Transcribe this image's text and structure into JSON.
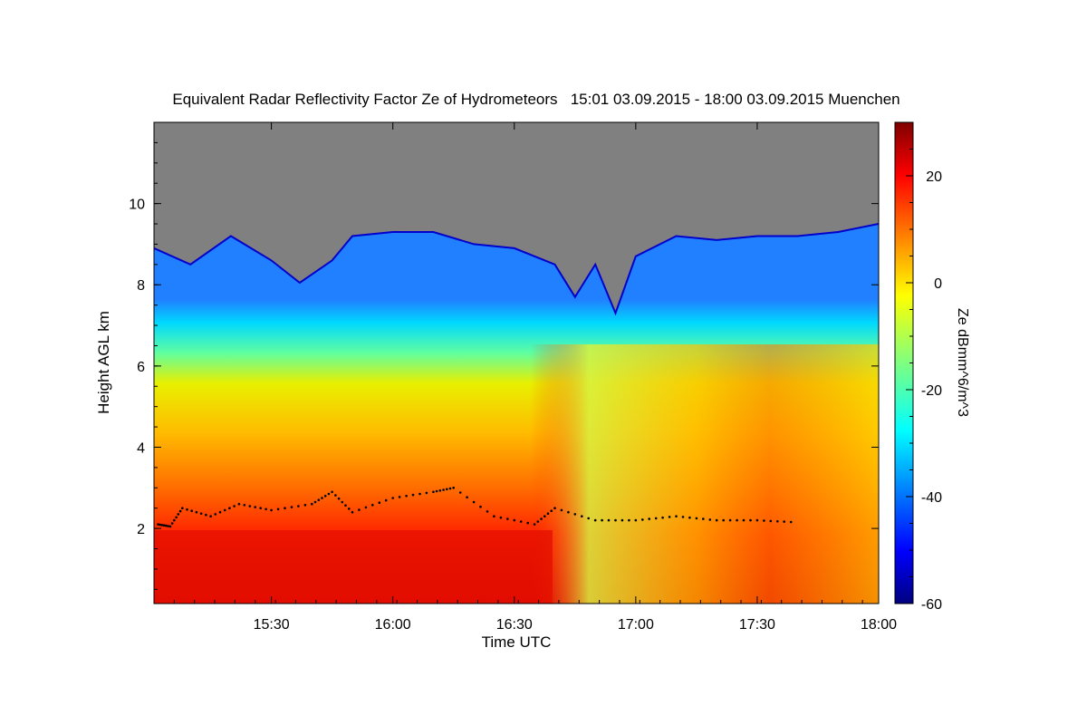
{
  "chart_data": {
    "type": "heatmap",
    "title": "Equivalent Radar Reflectivity Factor Ze of Hydrometeors   15:01 03.09.2015 - 18:00 03.09.2015 Muenchen",
    "xlabel": "Time UTC",
    "ylabel": "Height AGL km",
    "colorbar_label": "Ze dBmm^6/m^3",
    "x_start": "15:01",
    "x_end": "18:00",
    "x_ticks": [
      "15:30",
      "16:00",
      "16:30",
      "17:00",
      "17:30",
      "18:00"
    ],
    "ylim": [
      0.15,
      12
    ],
    "y_ticks": [
      "2",
      "4",
      "6",
      "8",
      "10"
    ],
    "clim": [
      -60,
      30
    ],
    "colorbar_ticks": [
      "20",
      "0",
      "-20",
      "-40",
      "-60"
    ],
    "colormap": "jet",
    "no_data_color": "#808080",
    "echo_top_km": [
      {
        "t": "15:01",
        "h": 8.9
      },
      {
        "t": "15:10",
        "h": 8.5
      },
      {
        "t": "15:20",
        "h": 9.2
      },
      {
        "t": "15:30",
        "h": 8.6
      },
      {
        "t": "15:37",
        "h": 8.05
      },
      {
        "t": "15:45",
        "h": 8.6
      },
      {
        "t": "15:50",
        "h": 9.2
      },
      {
        "t": "16:00",
        "h": 9.3
      },
      {
        "t": "16:10",
        "h": 9.3
      },
      {
        "t": "16:20",
        "h": 9.0
      },
      {
        "t": "16:30",
        "h": 8.9
      },
      {
        "t": "16:40",
        "h": 8.5
      },
      {
        "t": "16:45",
        "h": 7.7
      },
      {
        "t": "16:50",
        "h": 8.5
      },
      {
        "t": "16:55",
        "h": 7.3
      },
      {
        "t": "17:00",
        "h": 8.7
      },
      {
        "t": "17:10",
        "h": 9.2
      },
      {
        "t": "17:20",
        "h": 9.1
      },
      {
        "t": "17:30",
        "h": 9.2
      },
      {
        "t": "17:40",
        "h": 9.2
      },
      {
        "t": "17:50",
        "h": 9.3
      },
      {
        "t": "18:00",
        "h": 9.5
      }
    ],
    "melting_layer_km": [
      {
        "t": "15:02",
        "h": 2.1
      },
      {
        "t": "15:05",
        "h": 2.05
      },
      {
        "t": "15:08",
        "h": 2.5
      },
      {
        "t": "15:15",
        "h": 2.3
      },
      {
        "t": "15:22",
        "h": 2.6
      },
      {
        "t": "15:30",
        "h": 2.45
      },
      {
        "t": "15:40",
        "h": 2.6
      },
      {
        "t": "15:45",
        "h": 2.9
      },
      {
        "t": "15:50",
        "h": 2.4
      },
      {
        "t": "16:00",
        "h": 2.75
      },
      {
        "t": "16:10",
        "h": 2.9
      },
      {
        "t": "16:15",
        "h": 3.0
      },
      {
        "t": "16:25",
        "h": 2.3
      },
      {
        "t": "16:35",
        "h": 2.1
      },
      {
        "t": "16:40",
        "h": 2.5
      },
      {
        "t": "16:50",
        "h": 2.2
      },
      {
        "t": "17:00",
        "h": 2.2
      },
      {
        "t": "17:10",
        "h": 2.3
      },
      {
        "t": "17:20",
        "h": 2.2
      },
      {
        "t": "17:30",
        "h": 2.2
      },
      {
        "t": "17:40",
        "h": 2.15
      }
    ]
  }
}
